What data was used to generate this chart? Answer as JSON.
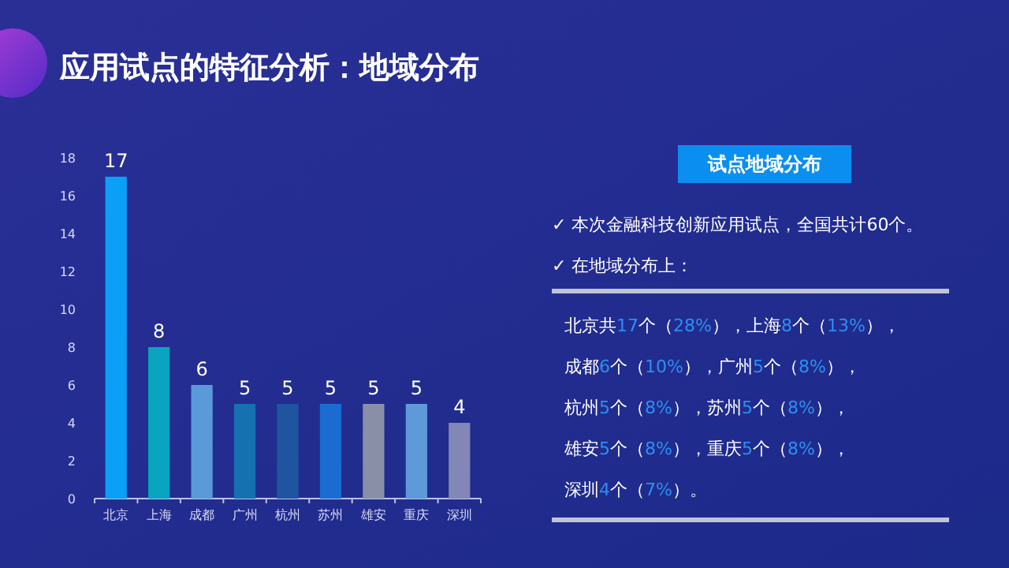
{
  "chart_data": {
    "type": "bar",
    "title": "应用试点的特征分析：地域分布",
    "subtitle": "试点地域分布",
    "categories": [
      "北京",
      "上海",
      "成都",
      "广州",
      "杭州",
      "苏州",
      "雄安",
      "重庆",
      "深圳"
    ],
    "values": [
      17,
      8,
      6,
      5,
      5,
      5,
      5,
      5,
      4
    ],
    "colors": [
      "#0aa0f8",
      "#08a4c0",
      "#5a9ad8",
      "#1571b0",
      "#1f55a0",
      "#1a6cd0",
      "#8a8fa8",
      "#5f9ad8",
      "#8387b5"
    ],
    "ylim": [
      0,
      18
    ],
    "yticks": [
      0,
      2,
      4,
      6,
      8,
      10,
      12,
      14,
      16,
      18
    ],
    "grid": false,
    "data_labels": true,
    "annotations": [
      "✓ 本次金融科技创新应用试点，全国共计60个。",
      "✓ 在地域分布上：",
      "北京共17个（28%），上海8个（13%），",
      "成都6个（10%），广州5个（8%），",
      "杭州5个（8%），苏州5个（8%），",
      "雄安5个（8%），重庆5个（8%），",
      "深圳4个（7%）。"
    ]
  }
}
